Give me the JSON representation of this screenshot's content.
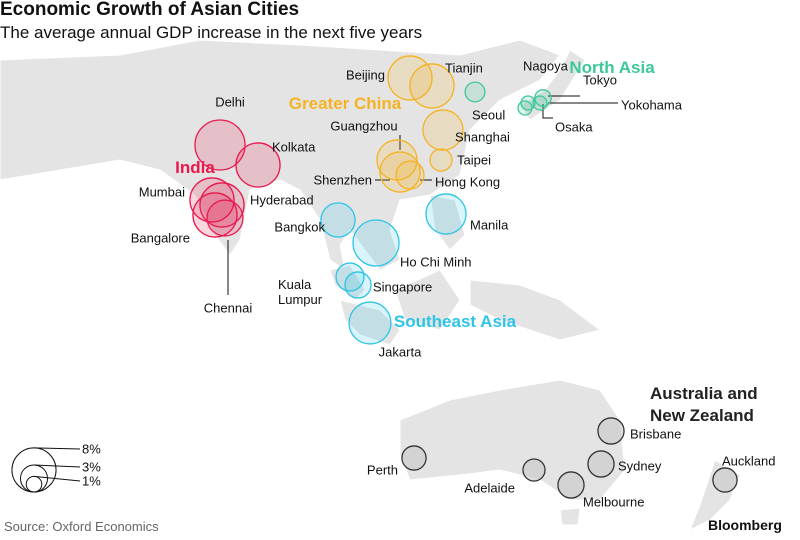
{
  "title": "Economic Growth of Asian Cities",
  "subtitle": "The average annual GDP increase in the next five years",
  "source": "Source: Oxford Economics",
  "brand": "Bloomberg",
  "legend": [
    {
      "value": 8,
      "label": "8%"
    },
    {
      "value": 3,
      "label": "3%"
    },
    {
      "value": 1,
      "label": "1%"
    }
  ],
  "regions": [
    {
      "name": "India",
      "color": "#e8194f",
      "cities": [
        {
          "name": "Delhi",
          "growth": 10.3
        },
        {
          "name": "Kolkata",
          "growth": 8.0
        },
        {
          "name": "Mumbai",
          "growth": 8.0
        },
        {
          "name": "Hyderabad",
          "growth": 8.0
        },
        {
          "name": "Bangalore",
          "growth": 8.0
        },
        {
          "name": "Chennai",
          "growth": 5.3
        }
      ]
    },
    {
      "name": "Greater China",
      "color": "#f5b324",
      "cities": [
        {
          "name": "Beijing",
          "growth": 8.0
        },
        {
          "name": "Tianjin",
          "growth": 8.0
        },
        {
          "name": "Guangzhou",
          "growth": 6.6
        },
        {
          "name": "Shenzhen",
          "growth": 6.6
        },
        {
          "name": "Hong Kong",
          "growth": 3.2
        },
        {
          "name": "Shanghai",
          "growth": 6.6
        },
        {
          "name": "Taipei",
          "growth": 2.0
        }
      ]
    },
    {
      "name": "North Asia",
      "color": "#3dc79a",
      "cities": [
        {
          "name": "Seoul",
          "growth": 1.6
        },
        {
          "name": "Nagoya",
          "growth": 0.8
        },
        {
          "name": "Tokyo",
          "growth": 1.1
        },
        {
          "name": "Yokohama",
          "growth": 0.8
        },
        {
          "name": "Osaka",
          "growth": 0.8
        }
      ]
    },
    {
      "name": "Southeast Asia",
      "color": "#2ec4e6",
      "cities": [
        {
          "name": "Bangkok",
          "growth": 4.8
        },
        {
          "name": "Ho Chi Minh",
          "growth": 8.7
        },
        {
          "name": "Manila",
          "growth": 6.6
        },
        {
          "name": "Kuala Lumpur",
          "growth": 3.2
        },
        {
          "name": "Singapore",
          "growth": 2.8
        },
        {
          "name": "Jakarta",
          "growth": 7.2
        }
      ]
    },
    {
      "name": "Australia and New Zealand",
      "color": "#333333",
      "cities": [
        {
          "name": "Perth",
          "growth": 2.4
        },
        {
          "name": "Adelaide",
          "growth": 2.0
        },
        {
          "name": "Melbourne",
          "growth": 2.8
        },
        {
          "name": "Sydney",
          "growth": 2.8
        },
        {
          "name": "Brisbane",
          "growth": 2.8
        },
        {
          "name": "Auckland",
          "growth": 2.4
        }
      ]
    }
  ]
}
